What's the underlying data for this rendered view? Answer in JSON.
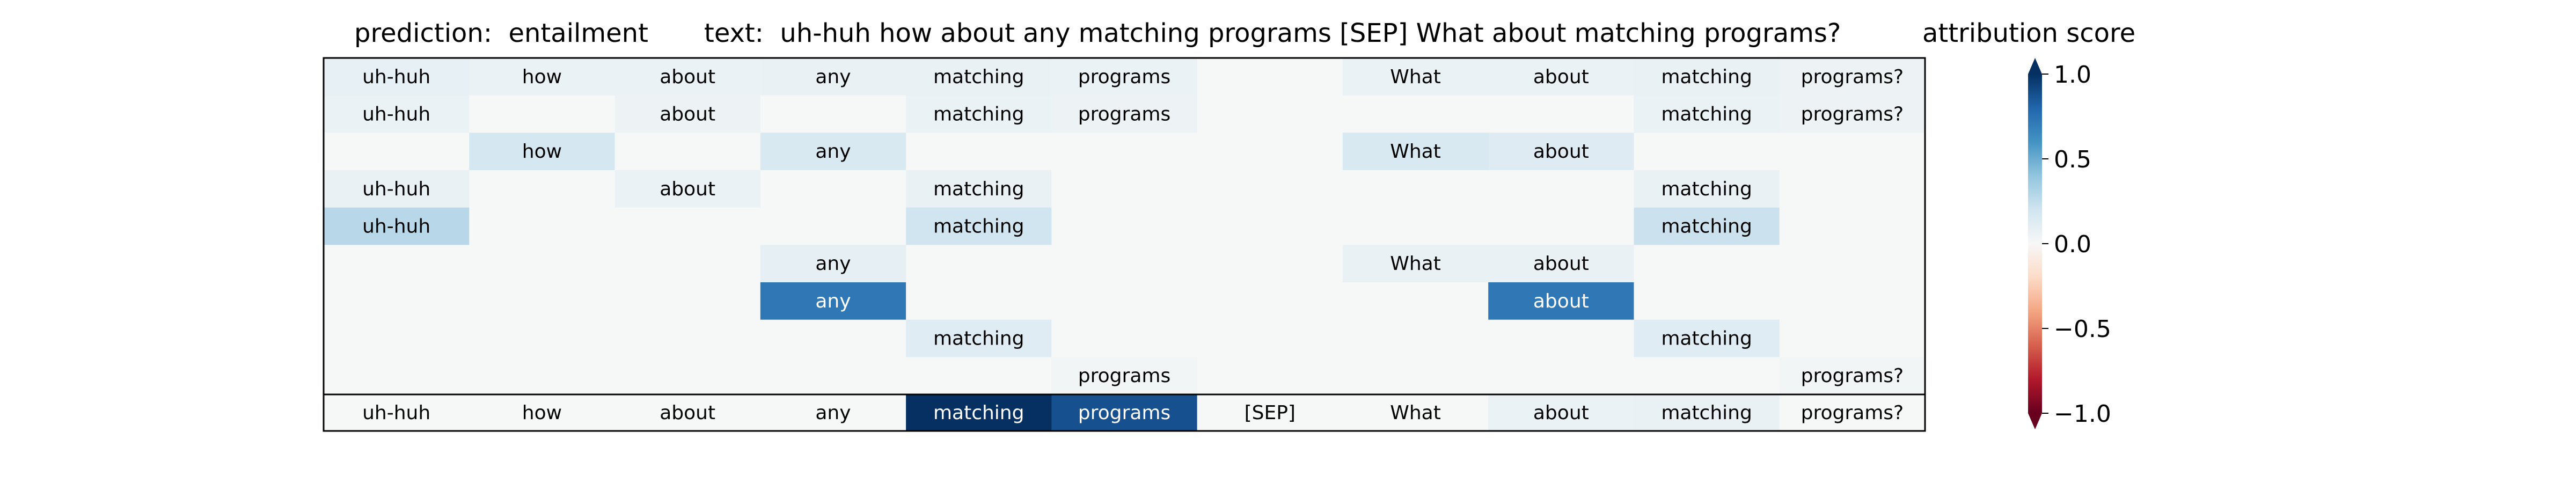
{
  "chart_data": {
    "type": "heatmap",
    "title_prediction": "prediction:  entailment",
    "title_text": "text:  uh-huh how about any matching programs [SEP] What about matching programs?",
    "colorbar_label": "attribution score",
    "colorbar_range": [
      -1.0,
      1.0
    ],
    "colorbar_ticks": [
      "1.0",
      "0.5",
      "0.0",
      "−0.5",
      "−1.0"
    ],
    "colorbar_tick_values": [
      1.0,
      0.5,
      0.0,
      -0.5,
      -1.0
    ],
    "colormap": "RdBu",
    "tokens": [
      "uh-huh",
      "how",
      "about",
      "any",
      "matching",
      "programs",
      "[SEP]",
      "What",
      "about",
      "matching",
      "programs?"
    ],
    "rows": [
      {
        "labels": [
          "uh-huh",
          "how",
          "about",
          "any",
          "matching",
          "programs",
          "",
          "What",
          "about",
          "matching",
          "programs?"
        ],
        "values": [
          0.08,
          0.06,
          0.06,
          0.07,
          0.07,
          0.06,
          0.0,
          0.06,
          0.06,
          0.07,
          0.05
        ]
      },
      {
        "labels": [
          "uh-huh",
          "",
          "about",
          "",
          "matching",
          "programs",
          "",
          "",
          "",
          "matching",
          "programs?"
        ],
        "values": [
          0.06,
          0.0,
          0.05,
          0.0,
          0.06,
          0.05,
          0.0,
          0.0,
          0.0,
          0.06,
          0.05
        ]
      },
      {
        "labels": [
          "",
          "how",
          "",
          "any",
          "",
          "",
          "",
          "What",
          "about",
          "",
          ""
        ],
        "values": [
          0.0,
          0.18,
          0.0,
          0.16,
          0.0,
          0.0,
          0.0,
          0.16,
          0.13,
          0.0,
          0.0
        ]
      },
      {
        "labels": [
          "uh-huh",
          "",
          "about",
          "",
          "matching",
          "",
          "",
          "",
          "",
          "matching",
          ""
        ],
        "values": [
          0.07,
          0.0,
          0.06,
          0.0,
          0.07,
          0.0,
          0.0,
          0.0,
          0.0,
          0.07,
          0.0
        ]
      },
      {
        "labels": [
          "uh-huh",
          "",
          "",
          "",
          "matching",
          "",
          "",
          "",
          "",
          "matching",
          ""
        ],
        "values": [
          0.28,
          0.0,
          0.0,
          0.0,
          0.2,
          0.0,
          0.0,
          0.0,
          0.0,
          0.22,
          0.0
        ]
      },
      {
        "labels": [
          "",
          "",
          "",
          "any",
          "",
          "",
          "",
          "What",
          "about",
          "",
          ""
        ],
        "values": [
          0.0,
          0.0,
          0.0,
          0.09,
          0.0,
          0.0,
          0.0,
          0.07,
          0.07,
          0.0,
          0.0
        ]
      },
      {
        "labels": [
          "",
          "",
          "",
          "any",
          "",
          "",
          "",
          "",
          "about",
          "",
          ""
        ],
        "values": [
          0.0,
          0.0,
          0.0,
          0.72,
          0.0,
          0.0,
          0.0,
          0.0,
          0.72,
          0.0,
          0.0
        ]
      },
      {
        "labels": [
          "",
          "",
          "",
          "",
          "matching",
          "",
          "",
          "",
          "",
          "matching",
          ""
        ],
        "values": [
          0.0,
          0.0,
          0.0,
          0.0,
          0.12,
          0.0,
          0.0,
          0.0,
          0.0,
          0.12,
          0.0
        ]
      },
      {
        "labels": [
          "",
          "",
          "",
          "",
          "",
          "programs",
          "",
          "",
          "",
          "",
          "programs?"
        ],
        "values": [
          0.0,
          0.0,
          0.0,
          0.0,
          0.0,
          0.02,
          0.0,
          0.0,
          0.0,
          0.0,
          0.02
        ]
      }
    ],
    "summary_row": {
      "labels": [
        "uh-huh",
        "how",
        "about",
        "any",
        "matching",
        "programs",
        "[SEP]",
        "What",
        "about",
        "matching",
        "programs?"
      ],
      "values": [
        0.0,
        0.0,
        0.0,
        0.0,
        1.0,
        0.88,
        0.0,
        0.0,
        0.06,
        0.07,
        0.0
      ]
    }
  }
}
